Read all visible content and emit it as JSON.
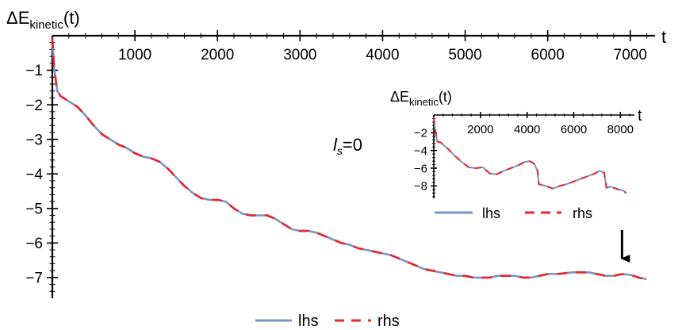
{
  "chart_data": [
    {
      "type": "line",
      "ylabel_main": "ΔE",
      "ylabel_sub": "kinetic",
      "ylabel_tail": "(t)",
      "xlabel": "t",
      "annotation_main": "l",
      "annotation_sub": "s",
      "annotation_tail": "=0",
      "xlim": [
        0,
        7300
      ],
      "ylim": [
        -7.6,
        0
      ],
      "x_ticks": [
        1000,
        2000,
        3000,
        4000,
        5000,
        6000,
        7000
      ],
      "x_tick_labels": [
        "1000",
        "2000",
        "3000",
        "4000",
        "5000",
        "6000",
        "7000"
      ],
      "y_ticks": [
        -1,
        -2,
        -3,
        -4,
        -5,
        -6,
        -7
      ],
      "y_tick_labels": [
        "−1",
        "−2",
        "−3",
        "−4",
        "−5",
        "−6",
        "−7"
      ],
      "x": [
        0,
        20,
        60,
        100,
        200,
        300,
        400,
        500,
        600,
        700,
        800,
        900,
        1000,
        1100,
        1200,
        1300,
        1400,
        1500,
        1600,
        1700,
        1800,
        1900,
        2000,
        2100,
        2200,
        2300,
        2400,
        2500,
        2600,
        2700,
        2800,
        2900,
        3000,
        3100,
        3200,
        3300,
        3400,
        3500,
        3600,
        3700,
        3800,
        3900,
        4000,
        4100,
        4200,
        4300,
        4400,
        4500,
        4600,
        4700,
        4800,
        4900,
        5000,
        5100,
        5200,
        5300,
        5400,
        5500,
        5600,
        5700,
        5800,
        5900,
        6000,
        6100,
        6200,
        6300,
        6400,
        6500,
        6600,
        6700,
        6800,
        6900,
        7000,
        7100,
        7200
      ],
      "series": [
        {
          "name": "lhs",
          "color": "#7a93c8",
          "style": "solid",
          "values": [
            -0.05,
            -0.9,
            -1.6,
            -1.75,
            -1.9,
            -2.05,
            -2.3,
            -2.6,
            -2.85,
            -3.0,
            -3.15,
            -3.25,
            -3.4,
            -3.5,
            -3.55,
            -3.65,
            -3.85,
            -4.1,
            -4.35,
            -4.55,
            -4.7,
            -4.75,
            -4.75,
            -4.8,
            -5.0,
            -5.15,
            -5.2,
            -5.2,
            -5.2,
            -5.3,
            -5.45,
            -5.6,
            -5.65,
            -5.65,
            -5.7,
            -5.8,
            -5.9,
            -6.0,
            -6.05,
            -6.15,
            -6.2,
            -6.25,
            -6.3,
            -6.35,
            -6.45,
            -6.55,
            -6.65,
            -6.75,
            -6.8,
            -6.85,
            -6.9,
            -6.95,
            -6.95,
            -7.0,
            -7.0,
            -7.0,
            -6.95,
            -6.95,
            -6.95,
            -7.0,
            -7.0,
            -6.95,
            -6.9,
            -6.9,
            -6.88,
            -6.85,
            -6.85,
            -6.85,
            -6.9,
            -6.95,
            -6.95,
            -6.9,
            -6.92,
            -7.0,
            -7.05
          ]
        },
        {
          "name": "rhs",
          "color": "#e8262a",
          "style": "dashed",
          "values": [
            -0.05,
            -0.9,
            -1.6,
            -1.75,
            -1.9,
            -2.05,
            -2.3,
            -2.6,
            -2.85,
            -3.0,
            -3.15,
            -3.25,
            -3.4,
            -3.5,
            -3.55,
            -3.65,
            -3.85,
            -4.1,
            -4.35,
            -4.55,
            -4.7,
            -4.75,
            -4.75,
            -4.8,
            -5.0,
            -5.15,
            -5.2,
            -5.2,
            -5.2,
            -5.3,
            -5.45,
            -5.6,
            -5.65,
            -5.65,
            -5.7,
            -5.8,
            -5.9,
            -6.0,
            -6.05,
            -6.15,
            -6.2,
            -6.25,
            -6.3,
            -6.35,
            -6.45,
            -6.55,
            -6.65,
            -6.75,
            -6.8,
            -6.85,
            -6.9,
            -6.95,
            -6.95,
            -7.0,
            -7.0,
            -7.0,
            -6.95,
            -6.95,
            -6.95,
            -7.0,
            -7.0,
            -6.95,
            -6.9,
            -6.9,
            -6.88,
            -6.85,
            -6.85,
            -6.85,
            -6.9,
            -6.95,
            -6.95,
            -6.9,
            -6.92,
            -7.0,
            -7.05
          ]
        }
      ],
      "arrow_at_x": 6900,
      "legend_position": "bottom-center"
    },
    {
      "type": "line",
      "ylabel_main": "ΔE",
      "ylabel_sub": "kinetic",
      "ylabel_tail": "(t)",
      "xlabel": "t",
      "xlim": [
        0,
        8600
      ],
      "ylim": [
        -9.4,
        0
      ],
      "x_ticks": [
        2000,
        4000,
        6000,
        8000
      ],
      "x_tick_labels": [
        "2000",
        "4000",
        "6000",
        "8000"
      ],
      "y_ticks": [
        -2,
        -4,
        -6,
        -8
      ],
      "y_tick_labels": [
        "−2",
        "−4",
        "−6",
        "−8"
      ],
      "x": [
        0,
        50,
        150,
        300,
        600,
        900,
        1200,
        1500,
        1800,
        2100,
        2400,
        2700,
        3000,
        3300,
        3600,
        3900,
        4100,
        4300,
        4450,
        4500,
        4800,
        5100,
        5400,
        5700,
        6000,
        6300,
        6600,
        6900,
        7100,
        7300,
        7400,
        7600,
        7800,
        7900,
        8100,
        8250
      ],
      "series": [
        {
          "name": "lhs",
          "color": "#7a93c8",
          "style": "solid",
          "values": [
            -0.3,
            -1.5,
            -3.0,
            -3.1,
            -3.8,
            -4.6,
            -5.3,
            -5.9,
            -6.0,
            -5.9,
            -6.6,
            -6.7,
            -6.3,
            -6.0,
            -5.7,
            -5.3,
            -5.2,
            -5.5,
            -6.3,
            -7.8,
            -8.0,
            -8.3,
            -8.0,
            -7.8,
            -7.5,
            -7.2,
            -6.9,
            -6.6,
            -6.3,
            -6.5,
            -8.2,
            -8.1,
            -8.3,
            -8.4,
            -8.5,
            -8.8
          ]
        },
        {
          "name": "rhs",
          "color": "#e8262a",
          "style": "dashed",
          "values": [
            -0.3,
            -1.5,
            -3.0,
            -3.1,
            -3.8,
            -4.6,
            -5.3,
            -5.9,
            -6.0,
            -5.9,
            -6.6,
            -6.7,
            -6.3,
            -6.0,
            -5.7,
            -5.3,
            -5.2,
            -5.5,
            -6.3,
            -7.8,
            -8.0,
            -8.3,
            -8.0,
            -7.8,
            -7.5,
            -7.2,
            -6.9,
            -6.6,
            -6.3,
            -6.5,
            -8.2,
            -8.1,
            -8.3,
            -8.4,
            -8.5,
            -8.8
          ]
        }
      ],
      "legend_position": "bottom-center"
    }
  ]
}
